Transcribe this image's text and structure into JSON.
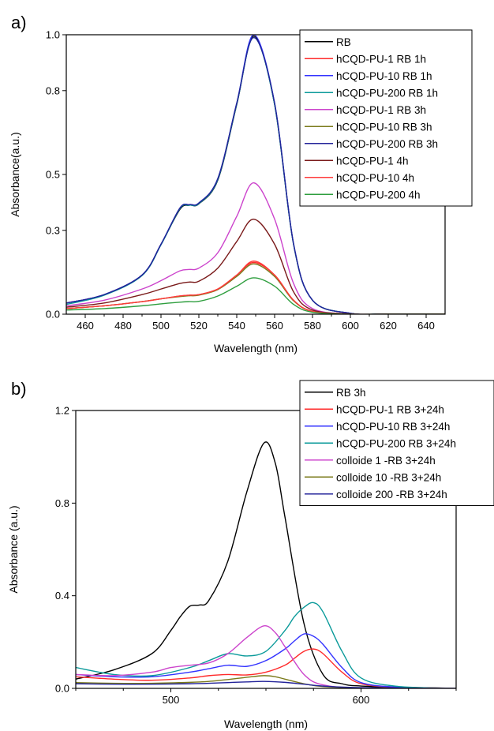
{
  "chart_data": [
    {
      "panel_label": "a)",
      "type": "line",
      "xlabel": "Wavelength (nm)",
      "ylabel": "Absorbance(a.u.)",
      "xlim": [
        450,
        650
      ],
      "ylim": [
        0,
        1.0
      ],
      "x_ticks": [
        460,
        480,
        500,
        520,
        540,
        560,
        580,
        600,
        620,
        640
      ],
      "y_ticks": [
        0.0,
        0.3,
        0.5,
        0.8,
        1.0
      ],
      "y_tick_labels": [
        "0.0",
        "0.3",
        "0.5",
        "0.8",
        "1.0"
      ],
      "legend_position": "top-right",
      "series": [
        {
          "name": "RB",
          "color": "#000000",
          "x": [
            450,
            470,
            490,
            500,
            510,
            515,
            520,
            530,
            540,
            549,
            560,
            570,
            580,
            600,
            620,
            650
          ],
          "y": [
            0.04,
            0.07,
            0.14,
            0.25,
            0.375,
            0.39,
            0.395,
            0.48,
            0.75,
            0.995,
            0.75,
            0.25,
            0.05,
            0.003,
            0.001,
            0.0
          ]
        },
        {
          "name": "hCQD-PU-1 RB 1h",
          "color": "#ff2a2a",
          "x": [
            450,
            470,
            490,
            500,
            510,
            515,
            520,
            530,
            540,
            549,
            560,
            570,
            580,
            600,
            620,
            650
          ],
          "y": [
            0.02,
            0.03,
            0.045,
            0.055,
            0.065,
            0.068,
            0.07,
            0.09,
            0.14,
            0.185,
            0.14,
            0.05,
            0.01,
            0.0,
            0.0,
            0.0
          ]
        },
        {
          "name": "hCQD-PU-10 RB 1h",
          "color": "#3333ff",
          "x": [
            450,
            470,
            490,
            500,
            510,
            515,
            520,
            530,
            540,
            549,
            560,
            570,
            580,
            600,
            620,
            650
          ],
          "y": [
            0.04,
            0.07,
            0.14,
            0.25,
            0.38,
            0.392,
            0.398,
            0.485,
            0.755,
            1.0,
            0.755,
            0.252,
            0.05,
            0.003,
            0.001,
            0.0
          ]
        },
        {
          "name": "hCQD-PU-200 RB 1h",
          "color": "#0a9a9a",
          "x": [
            450,
            470,
            490,
            500,
            510,
            515,
            520,
            530,
            540,
            549,
            560,
            570,
            580,
            600,
            620,
            650
          ],
          "y": [
            0.035,
            0.068,
            0.138,
            0.248,
            0.378,
            0.39,
            0.396,
            0.482,
            0.752,
            0.99,
            0.75,
            0.25,
            0.05,
            0.003,
            0.001,
            0.0
          ]
        },
        {
          "name": "hCQD-PU-1 RB 3h",
          "color": "#cc44cc",
          "x": [
            450,
            470,
            490,
            500,
            510,
            515,
            520,
            530,
            540,
            549,
            560,
            570,
            580,
            600,
            620,
            650
          ],
          "y": [
            0.03,
            0.05,
            0.09,
            0.12,
            0.155,
            0.16,
            0.165,
            0.22,
            0.35,
            0.47,
            0.34,
            0.11,
            0.02,
            0.001,
            0.0,
            0.0
          ]
        },
        {
          "name": "hCQD-PU-10 RB 3h",
          "color": "#7a7a1a",
          "x": [
            450,
            470,
            490,
            500,
            510,
            515,
            520,
            530,
            540,
            549,
            560,
            570,
            580,
            600,
            620,
            650
          ],
          "y": [
            0.02,
            0.03,
            0.045,
            0.055,
            0.063,
            0.066,
            0.068,
            0.088,
            0.135,
            0.18,
            0.135,
            0.048,
            0.01,
            0.0,
            0.0,
            0.0
          ]
        },
        {
          "name": "hCQD-PU-200 RB 3h",
          "color": "#222299",
          "x": [
            450,
            470,
            490,
            500,
            510,
            515,
            520,
            530,
            540,
            549,
            560,
            570,
            580,
            600,
            620,
            650
          ],
          "y": [
            0.04,
            0.07,
            0.14,
            0.25,
            0.38,
            0.392,
            0.398,
            0.485,
            0.755,
            0.99,
            0.755,
            0.252,
            0.05,
            0.003,
            0.001,
            0.0
          ]
        },
        {
          "name": "hCQD-PU-1 4h",
          "color": "#7a1a1a",
          "x": [
            450,
            470,
            490,
            500,
            510,
            515,
            520,
            530,
            540,
            549,
            560,
            570,
            580,
            600,
            620,
            650
          ],
          "y": [
            0.025,
            0.04,
            0.07,
            0.09,
            0.11,
            0.115,
            0.118,
            0.165,
            0.26,
            0.34,
            0.25,
            0.08,
            0.015,
            0.001,
            0.0,
            0.0
          ]
        },
        {
          "name": "hCQD-PU-10 4h",
          "color": "#ff3b3b",
          "x": [
            450,
            470,
            490,
            500,
            510,
            515,
            520,
            530,
            540,
            549,
            560,
            570,
            580,
            600,
            620,
            650
          ],
          "y": [
            0.02,
            0.03,
            0.045,
            0.055,
            0.065,
            0.068,
            0.07,
            0.09,
            0.14,
            0.19,
            0.14,
            0.05,
            0.01,
            0.0,
            0.0,
            0.0
          ]
        },
        {
          "name": "hCQD-PU-200 4h",
          "color": "#2e9e3e",
          "x": [
            450,
            470,
            490,
            500,
            510,
            515,
            520,
            530,
            540,
            549,
            560,
            570,
            580,
            600,
            620,
            650
          ],
          "y": [
            0.015,
            0.02,
            0.03,
            0.037,
            0.043,
            0.045,
            0.046,
            0.065,
            0.1,
            0.13,
            0.1,
            0.035,
            0.007,
            0.0,
            0.0,
            0.0
          ]
        }
      ]
    },
    {
      "panel_label": "b)",
      "type": "line",
      "xlabel": "Wavelength (nm)",
      "ylabel": "Absorbance (a.u.)",
      "xlim": [
        450,
        650
      ],
      "ylim": [
        0,
        1.2
      ],
      "x_ticks": [
        500,
        600
      ],
      "y_ticks": [
        0.0,
        0.4,
        0.8,
        1.2
      ],
      "y_tick_labels": [
        "0.0",
        "0.4",
        "0.8",
        "1.2"
      ],
      "legend_position": "top-right",
      "series": [
        {
          "name": "RB 3h",
          "color": "#000000",
          "x": [
            450,
            470,
            490,
            500,
            505,
            510,
            515,
            520,
            530,
            540,
            549,
            555,
            560,
            570,
            580,
            590,
            600,
            620,
            650
          ],
          "y": [
            0.04,
            0.08,
            0.15,
            0.25,
            0.31,
            0.355,
            0.36,
            0.38,
            0.55,
            0.85,
            1.06,
            0.97,
            0.74,
            0.28,
            0.06,
            0.02,
            0.01,
            0.005,
            0.0
          ]
        },
        {
          "name": "hCQD-PU-1 RB 3+24h",
          "color": "#ff2a2a",
          "x": [
            450,
            470,
            490,
            510,
            520,
            530,
            540,
            550,
            560,
            565,
            570,
            575,
            580,
            590,
            600,
            620,
            650
          ],
          "y": [
            0.05,
            0.04,
            0.035,
            0.045,
            0.055,
            0.06,
            0.058,
            0.07,
            0.1,
            0.13,
            0.16,
            0.17,
            0.15,
            0.07,
            0.02,
            0.005,
            0.0
          ]
        },
        {
          "name": "hCQD-PU-10 RB 3+24h",
          "color": "#3333ff",
          "x": [
            450,
            470,
            490,
            510,
            520,
            530,
            540,
            550,
            560,
            565,
            570,
            575,
            580,
            590,
            600,
            620,
            650
          ],
          "y": [
            0.06,
            0.05,
            0.05,
            0.07,
            0.085,
            0.1,
            0.095,
            0.12,
            0.17,
            0.205,
            0.235,
            0.225,
            0.19,
            0.09,
            0.025,
            0.005,
            0.0
          ]
        },
        {
          "name": "hCQD-PU-200 RB 3+24h",
          "color": "#0a9a9a",
          "x": [
            450,
            470,
            490,
            510,
            520,
            530,
            540,
            550,
            560,
            565,
            570,
            575,
            580,
            590,
            600,
            620,
            650
          ],
          "y": [
            0.09,
            0.06,
            0.055,
            0.09,
            0.12,
            0.15,
            0.14,
            0.16,
            0.25,
            0.31,
            0.35,
            0.37,
            0.33,
            0.16,
            0.045,
            0.008,
            0.0
          ]
        },
        {
          "name": "colloide 1 -RB  3+24h",
          "color": "#cc44cc",
          "x": [
            450,
            470,
            490,
            500,
            510,
            520,
            530,
            540,
            549,
            555,
            560,
            570,
            580,
            600,
            650
          ],
          "y": [
            0.06,
            0.055,
            0.07,
            0.09,
            0.1,
            0.11,
            0.15,
            0.22,
            0.27,
            0.24,
            0.18,
            0.06,
            0.015,
            0.002,
            0.0
          ]
        },
        {
          "name": "colloide 10 -RB 3+24h",
          "color": "#7a7a1a",
          "x": [
            450,
            470,
            490,
            510,
            520,
            530,
            540,
            549,
            555,
            560,
            570,
            580,
            600,
            650
          ],
          "y": [
            0.025,
            0.022,
            0.022,
            0.026,
            0.03,
            0.038,
            0.048,
            0.055,
            0.05,
            0.04,
            0.02,
            0.008,
            0.002,
            0.0
          ]
        },
        {
          "name": "colloide 200 -RB 3+24h",
          "color": "#222299",
          "x": [
            450,
            470,
            490,
            510,
            520,
            530,
            540,
            549,
            560,
            570,
            580,
            600,
            650
          ],
          "y": [
            0.02,
            0.018,
            0.018,
            0.02,
            0.022,
            0.025,
            0.028,
            0.03,
            0.026,
            0.018,
            0.01,
            0.003,
            0.0
          ]
        }
      ]
    }
  ]
}
